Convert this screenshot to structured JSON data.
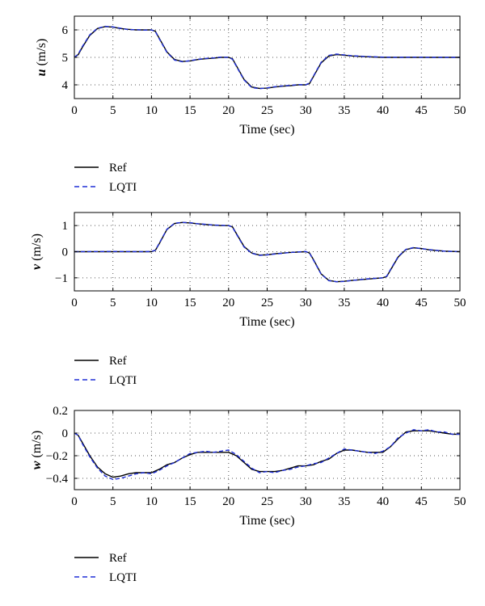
{
  "chart_data": [
    {
      "type": "line",
      "ylabel_var": "u",
      "ylabel_unit": " (m/s)",
      "xlabel": "Time (sec)",
      "xlim": [
        0,
        50
      ],
      "ylim": [
        3.5,
        6.5
      ],
      "xticks": [
        0,
        5,
        10,
        15,
        20,
        25,
        30,
        35,
        40,
        45,
        50
      ],
      "yticks": [
        4,
        5,
        6
      ],
      "grid": true,
      "legend_position": "below",
      "series": [
        {
          "name": "Ref",
          "color": "#000000",
          "style": "solid",
          "x": [
            0,
            0.5,
            1,
            2,
            3,
            4,
            5,
            6,
            7,
            8,
            9,
            10,
            10.5,
            11,
            12,
            13,
            14,
            15,
            16,
            17,
            18,
            19,
            20,
            20.5,
            21,
            22,
            23,
            24,
            25,
            26,
            27,
            28,
            29,
            30,
            30.5,
            31,
            32,
            33,
            34,
            35,
            36,
            38,
            40,
            42,
            44,
            46,
            48,
            50
          ],
          "y": [
            5.0,
            5.1,
            5.35,
            5.8,
            6.05,
            6.12,
            6.1,
            6.05,
            6.02,
            6.0,
            6.0,
            6.0,
            5.95,
            5.7,
            5.2,
            4.92,
            4.85,
            4.87,
            4.92,
            4.95,
            4.97,
            5.0,
            5.0,
            4.95,
            4.7,
            4.2,
            3.92,
            3.87,
            3.88,
            3.92,
            3.95,
            3.97,
            4.0,
            4.0,
            4.05,
            4.3,
            4.8,
            5.05,
            5.1,
            5.08,
            5.05,
            5.02,
            5.0,
            5.0,
            5.0,
            5.0,
            5.0,
            5.0
          ]
        },
        {
          "name": "LQTI",
          "color": "#1f2fd6",
          "style": "dashed",
          "x": [
            0,
            0.5,
            1,
            2,
            3,
            4,
            5,
            6,
            7,
            8,
            9,
            10,
            10.5,
            11,
            12,
            13,
            14,
            15,
            16,
            17,
            18,
            19,
            20,
            20.5,
            21,
            22,
            23,
            24,
            25,
            26,
            27,
            28,
            29,
            30,
            30.5,
            31,
            32,
            33,
            34,
            35,
            36,
            38,
            40,
            42,
            44,
            46,
            48,
            50
          ],
          "y": [
            5.0,
            5.12,
            5.38,
            5.82,
            6.06,
            6.13,
            6.11,
            6.06,
            6.01,
            6.01,
            5.99,
            6.0,
            5.94,
            5.68,
            5.18,
            4.9,
            4.84,
            4.88,
            4.93,
            4.96,
            4.98,
            5.01,
            5.0,
            4.93,
            4.68,
            4.18,
            3.9,
            3.86,
            3.89,
            3.93,
            3.96,
            3.98,
            4.01,
            4.0,
            4.07,
            4.32,
            4.82,
            5.07,
            5.12,
            5.09,
            5.06,
            5.03,
            5.01,
            5.0,
            5.01,
            5.0,
            5.0,
            5.0
          ]
        }
      ]
    },
    {
      "type": "line",
      "ylabel_var": "v",
      "ylabel_unit": " (m/s)",
      "xlabel": "Time (sec)",
      "xlim": [
        0,
        50
      ],
      "ylim": [
        -1.5,
        1.5
      ],
      "xticks": [
        0,
        5,
        10,
        15,
        20,
        25,
        30,
        35,
        40,
        45,
        50
      ],
      "yticks": [
        -1,
        0,
        1
      ],
      "grid": true,
      "legend_position": "below",
      "series": [
        {
          "name": "Ref",
          "color": "#000000",
          "style": "solid",
          "x": [
            0,
            5,
            9,
            10,
            10.5,
            11,
            12,
            13,
            14,
            15,
            16,
            17,
            18,
            19,
            20,
            20.5,
            21,
            22,
            23,
            24,
            25,
            26,
            28,
            30,
            30.5,
            31,
            32,
            33,
            34,
            35,
            36,
            38,
            40,
            40.5,
            41,
            42,
            43,
            44,
            45,
            46,
            48,
            50
          ],
          "y": [
            0,
            0,
            0,
            0,
            0.05,
            0.3,
            0.85,
            1.08,
            1.12,
            1.1,
            1.07,
            1.04,
            1.02,
            1.0,
            1.0,
            0.95,
            0.7,
            0.2,
            -0.05,
            -0.13,
            -0.12,
            -0.08,
            -0.03,
            0.0,
            -0.05,
            -0.3,
            -0.85,
            -1.1,
            -1.15,
            -1.13,
            -1.1,
            -1.05,
            -1.0,
            -0.95,
            -0.7,
            -0.2,
            0.08,
            0.15,
            0.12,
            0.07,
            0.02,
            0.0
          ]
        },
        {
          "name": "LQTI",
          "color": "#1f2fd6",
          "style": "dashed",
          "x": [
            0,
            5,
            9,
            10,
            10.5,
            11,
            12,
            13,
            14,
            15,
            16,
            17,
            18,
            19,
            20,
            20.5,
            21,
            22,
            23,
            24,
            25,
            26,
            28,
            30,
            30.5,
            31,
            32,
            33,
            34,
            35,
            36,
            38,
            40,
            40.5,
            41,
            42,
            43,
            44,
            45,
            46,
            48,
            50
          ],
          "y": [
            0,
            0.01,
            0,
            0.01,
            0.06,
            0.32,
            0.86,
            1.09,
            1.12,
            1.11,
            1.07,
            1.05,
            1.02,
            1.01,
            1.0,
            0.94,
            0.68,
            0.18,
            -0.06,
            -0.14,
            -0.12,
            -0.09,
            -0.03,
            0.01,
            -0.06,
            -0.32,
            -0.86,
            -1.11,
            -1.15,
            -1.14,
            -1.1,
            -1.04,
            -1.0,
            -0.94,
            -0.68,
            -0.18,
            0.09,
            0.16,
            0.12,
            0.08,
            0.02,
            0.0
          ]
        }
      ]
    },
    {
      "type": "line",
      "ylabel_var": "w",
      "ylabel_unit": " (m/s)",
      "xlabel": "Time (sec)",
      "xlim": [
        0,
        50
      ],
      "ylim": [
        -0.5,
        0.2
      ],
      "xticks": [
        0,
        5,
        10,
        15,
        20,
        25,
        30,
        35,
        40,
        45,
        50
      ],
      "yticks": [
        -0.4,
        -0.2,
        0,
        0.2
      ],
      "ytick_labels": [
        "-0.4",
        "-0.2",
        "0",
        "0.2"
      ],
      "grid": true,
      "legend_position": "below",
      "series": [
        {
          "name": "Ref",
          "color": "#000000",
          "style": "solid",
          "x": [
            0,
            0.5,
            1,
            2,
            3,
            4,
            5,
            6,
            7,
            8,
            9,
            10,
            11,
            12,
            13,
            14,
            15,
            16,
            17,
            18,
            19,
            20,
            21,
            22,
            23,
            24,
            25,
            26,
            27,
            28,
            29,
            30,
            31,
            32,
            33,
            34,
            35,
            36,
            37,
            38,
            39,
            40,
            41,
            42,
            43,
            44,
            45,
            46,
            47,
            48,
            49,
            50
          ],
          "y": [
            0,
            -0.02,
            -0.08,
            -0.2,
            -0.3,
            -0.36,
            -0.39,
            -0.38,
            -0.36,
            -0.35,
            -0.35,
            -0.35,
            -0.32,
            -0.28,
            -0.26,
            -0.22,
            -0.19,
            -0.17,
            -0.17,
            -0.17,
            -0.17,
            -0.17,
            -0.2,
            -0.26,
            -0.32,
            -0.34,
            -0.34,
            -0.34,
            -0.33,
            -0.31,
            -0.29,
            -0.29,
            -0.28,
            -0.25,
            -0.23,
            -0.18,
            -0.15,
            -0.15,
            -0.16,
            -0.17,
            -0.17,
            -0.17,
            -0.12,
            -0.05,
            0.01,
            0.02,
            0.02,
            0.02,
            0.01,
            0.0,
            -0.01,
            -0.01
          ]
        },
        {
          "name": "LQTI",
          "color": "#1f2fd6",
          "style": "dashed",
          "x": [
            0,
            0.5,
            1,
            2,
            3,
            4,
            5,
            6,
            7,
            8,
            9,
            10,
            11,
            12,
            13,
            14,
            15,
            16,
            17,
            18,
            19,
            20,
            21,
            22,
            23,
            24,
            25,
            26,
            27,
            28,
            29,
            30,
            31,
            32,
            33,
            34,
            35,
            36,
            37,
            38,
            39,
            40,
            41,
            42,
            43,
            44,
            45,
            46,
            47,
            48,
            49,
            50
          ],
          "y": [
            0,
            -0.02,
            -0.09,
            -0.21,
            -0.31,
            -0.38,
            -0.41,
            -0.4,
            -0.38,
            -0.36,
            -0.35,
            -0.36,
            -0.33,
            -0.29,
            -0.26,
            -0.22,
            -0.18,
            -0.17,
            -0.16,
            -0.17,
            -0.16,
            -0.15,
            -0.19,
            -0.25,
            -0.31,
            -0.35,
            -0.34,
            -0.35,
            -0.33,
            -0.32,
            -0.3,
            -0.29,
            -0.27,
            -0.26,
            -0.22,
            -0.18,
            -0.14,
            -0.15,
            -0.16,
            -0.17,
            -0.18,
            -0.16,
            -0.12,
            -0.04,
            0.0,
            0.03,
            0.02,
            0.03,
            0.01,
            0.01,
            -0.01,
            -0.01
          ]
        }
      ]
    }
  ]
}
